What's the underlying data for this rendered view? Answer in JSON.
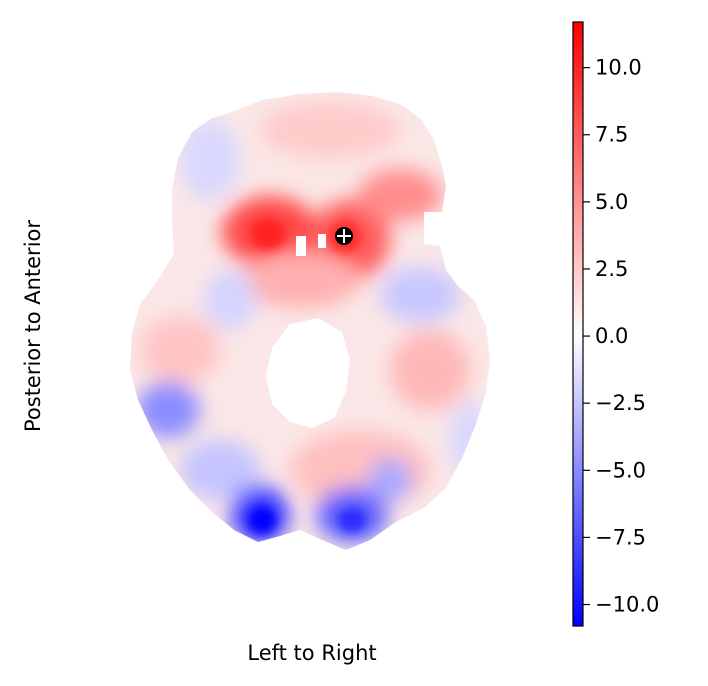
{
  "chart_data": {
    "type": "heatmap",
    "title": "",
    "xlabel": "Left to Right",
    "ylabel": "Posterior to Anterior",
    "colormap": "bwr",
    "colors": {
      "low": "#0000ff",
      "mid": "#ffffff",
      "high": "#ff0000"
    },
    "vlim": [
      -10.8,
      11.7
    ],
    "colorbar": {
      "ticks": [
        10.0,
        7.5,
        5.0,
        2.5,
        0.0,
        -2.5,
        -5.0,
        -7.5,
        -10.0
      ],
      "tick_labels": [
        "10.0",
        "7.5",
        "5.0",
        "2.5",
        "0.0",
        "−2.5",
        "−5.0",
        "−7.5",
        "−10.0"
      ]
    },
    "marker": {
      "symbol": "crosshair-circle",
      "value": 11.7
    },
    "grid": false
  }
}
